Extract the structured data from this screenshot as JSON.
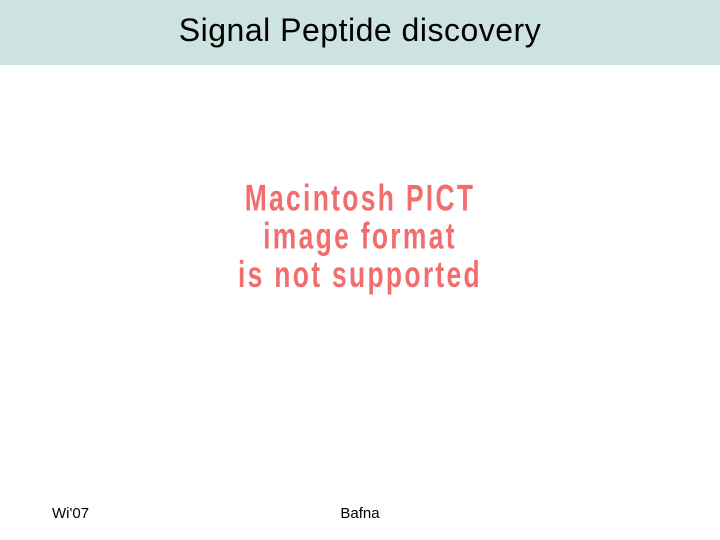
{
  "slide": {
    "title": "Signal Peptide discovery",
    "title_bar_background": "#cde3df",
    "title_color": "#000000",
    "title_fontsize": 32,
    "background_color": "#ffffff"
  },
  "placeholder": {
    "line1": "Macintosh PICT",
    "line2": "image format",
    "line3": "is not supported",
    "color": "#f16e6f",
    "fontsize": 23
  },
  "footer": {
    "left": "Wi'07",
    "center": "Bafna",
    "fontsize": 15,
    "color": "#000000"
  }
}
